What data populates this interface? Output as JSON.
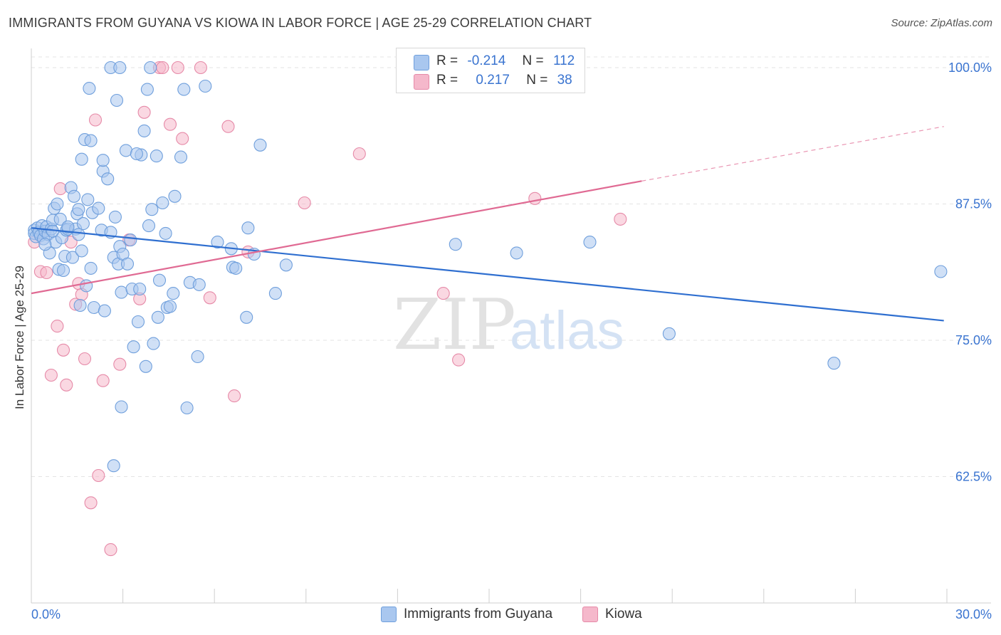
{
  "title": "IMMIGRANTS FROM GUYANA VS KIOWA IN LABOR FORCE | AGE 25-29 CORRELATION CHART",
  "source": "Source: ZipAtlas.com",
  "watermark": {
    "zip": "ZIP",
    "atlas": "atlas"
  },
  "legend": {
    "rows": [
      {
        "r_label": "R =",
        "r_value": "-0.214",
        "n_label": "N =",
        "n_value": "112",
        "color": "#a9c7ef"
      },
      {
        "r_label": "R =",
        "r_value": "0.217",
        "n_label": "N =",
        "n_value": "38",
        "color": "#f5b8cb"
      }
    ]
  },
  "bottom_legend": [
    {
      "label": "Immigrants from Guyana",
      "color": "#a9c7ef"
    },
    {
      "label": "Kiowa",
      "color": "#f5b8cb"
    }
  ],
  "chart_data": {
    "type": "scatter",
    "title": "IMMIGRANTS FROM GUYANA VS KIOWA IN LABOR FORCE | AGE 25-29 CORRELATION CHART",
    "xlabel": "",
    "ylabel": "In Labor Force | Age 25-29",
    "xlim": [
      0,
      30
    ],
    "ylim": [
      52,
      102
    ],
    "x_tick_labels": [
      "0.0%",
      "30.0%"
    ],
    "y_ticks": [
      62.5,
      75.0,
      87.5,
      100.0
    ],
    "y_tick_labels": [
      "62.5%",
      "75.0%",
      "87.5%",
      "100.0%"
    ],
    "grid": true,
    "colors": {
      "blue_point": "#a9c7ef",
      "blue_edge": "#6f9fdc",
      "blue_line": "#2f6fd0",
      "pink_point": "#f5b8cb",
      "pink_edge": "#e68aa8",
      "pink_line": "#e06a93",
      "tick_label": "#3a74d0"
    },
    "series": [
      {
        "name": "Immigrants from Guyana",
        "trend": {
          "x": [
            0.0,
            29.9
          ],
          "y": [
            85.3,
            76.8
          ]
        },
        "points": [
          [
            0.1,
            85.1
          ],
          [
            0.1,
            84.8
          ],
          [
            0.15,
            84.5
          ],
          [
            0.2,
            85.3
          ],
          [
            0.25,
            84.9
          ],
          [
            0.3,
            84.6
          ],
          [
            0.35,
            85.5
          ],
          [
            0.4,
            84.3
          ],
          [
            0.45,
            85.0
          ],
          [
            0.5,
            85.4
          ],
          [
            0.55,
            84.7
          ],
          [
            0.6,
            83.0
          ],
          [
            0.65,
            85.2
          ],
          [
            0.7,
            86.0
          ],
          [
            0.75,
            87.1
          ],
          [
            0.8,
            84.0
          ],
          [
            0.85,
            87.5
          ],
          [
            0.9,
            81.5
          ],
          [
            0.95,
            86.1
          ],
          [
            1.0,
            84.4
          ],
          [
            1.05,
            81.4
          ],
          [
            1.1,
            82.7
          ],
          [
            1.15,
            85.1
          ],
          [
            1.2,
            85.2
          ],
          [
            1.3,
            89.0
          ],
          [
            1.35,
            82.6
          ],
          [
            1.4,
            88.2
          ],
          [
            1.45,
            85.2
          ],
          [
            1.5,
            86.6
          ],
          [
            1.55,
            87.0
          ],
          [
            1.6,
            78.2
          ],
          [
            1.65,
            83.2
          ],
          [
            1.7,
            85.7
          ],
          [
            1.75,
            93.4
          ],
          [
            1.8,
            80.0
          ],
          [
            1.85,
            87.9
          ],
          [
            1.9,
            98.1
          ],
          [
            1.95,
            81.6
          ],
          [
            2.0,
            86.7
          ],
          [
            2.05,
            78.0
          ],
          [
            1.65,
            91.6
          ],
          [
            2.2,
            87.1
          ],
          [
            2.3,
            85.1
          ],
          [
            2.35,
            90.5
          ],
          [
            2.4,
            77.7
          ],
          [
            2.5,
            89.8
          ],
          [
            2.6,
            100.0
          ],
          [
            2.7,
            82.6
          ],
          [
            2.75,
            86.3
          ],
          [
            2.8,
            97.0
          ],
          [
            2.85,
            82.0
          ],
          [
            2.9,
            83.6
          ],
          [
            2.95,
            79.4
          ],
          [
            3.0,
            82.9
          ],
          [
            3.1,
            92.4
          ],
          [
            3.15,
            82.0
          ],
          [
            3.25,
            84.2
          ],
          [
            3.3,
            79.7
          ],
          [
            3.35,
            74.4
          ],
          [
            3.5,
            76.7
          ],
          [
            3.55,
            79.7
          ],
          [
            3.6,
            92.0
          ],
          [
            3.7,
            94.2
          ],
          [
            3.75,
            72.6
          ],
          [
            3.8,
            98.0
          ],
          [
            3.85,
            85.5
          ],
          [
            3.95,
            87.0
          ],
          [
            4.0,
            74.7
          ],
          [
            4.1,
            91.9
          ],
          [
            4.15,
            77.1
          ],
          [
            4.2,
            80.5
          ],
          [
            4.3,
            87.6
          ],
          [
            4.4,
            84.8
          ],
          [
            4.45,
            78.0
          ],
          [
            4.55,
            78.1
          ],
          [
            4.65,
            79.3
          ],
          [
            4.7,
            88.2
          ],
          [
            4.9,
            91.8
          ],
          [
            5.0,
            98.0
          ],
          [
            5.1,
            68.8
          ],
          [
            5.2,
            80.3
          ],
          [
            5.45,
            73.5
          ],
          [
            5.5,
            80.1
          ],
          [
            6.55,
            83.4
          ],
          [
            6.6,
            81.7
          ],
          [
            7.05,
            77.1
          ],
          [
            7.1,
            85.3
          ],
          [
            7.5,
            92.9
          ],
          [
            8.0,
            79.3
          ],
          [
            8.35,
            81.9
          ],
          [
            3.9,
            100.0
          ],
          [
            2.9,
            100.0
          ],
          [
            2.95,
            68.9
          ],
          [
            2.7,
            63.5
          ],
          [
            6.1,
            84.0
          ],
          [
            7.3,
            82.9
          ],
          [
            5.7,
            98.3
          ],
          [
            2.35,
            91.5
          ],
          [
            3.45,
            92.1
          ],
          [
            1.95,
            93.3
          ],
          [
            13.9,
            83.8
          ],
          [
            15.9,
            83.0
          ],
          [
            18.3,
            84.0
          ],
          [
            20.9,
            75.6
          ],
          [
            26.3,
            72.9
          ],
          [
            29.8,
            81.3
          ],
          [
            1.55,
            84.7
          ],
          [
            0.45,
            83.8
          ],
          [
            2.6,
            84.9
          ],
          [
            1.2,
            85.4
          ],
          [
            0.7,
            85.0
          ],
          [
            6.7,
            81.6
          ]
        ]
      },
      {
        "name": "Kiowa",
        "trend": {
          "x": [
            0.0,
            20.0
          ],
          "y": [
            79.3,
            89.6
          ]
        },
        "trend_dashed": {
          "x": [
            20.0,
            29.9
          ],
          "y": [
            89.6,
            94.6
          ]
        },
        "points": [
          [
            0.1,
            84.0
          ],
          [
            0.3,
            81.3
          ],
          [
            0.5,
            81.2
          ],
          [
            0.65,
            71.8
          ],
          [
            0.85,
            76.3
          ],
          [
            0.95,
            88.9
          ],
          [
            1.05,
            74.1
          ],
          [
            1.15,
            70.9
          ],
          [
            1.3,
            84.0
          ],
          [
            1.45,
            78.3
          ],
          [
            1.55,
            80.2
          ],
          [
            1.65,
            79.2
          ],
          [
            1.75,
            73.3
          ],
          [
            1.95,
            60.1
          ],
          [
            2.1,
            95.2
          ],
          [
            2.2,
            62.6
          ],
          [
            2.35,
            71.3
          ],
          [
            2.6,
            55.8
          ],
          [
            2.9,
            72.8
          ],
          [
            3.2,
            84.2
          ],
          [
            3.55,
            78.8
          ],
          [
            3.7,
            95.9
          ],
          [
            4.2,
            100.0
          ],
          [
            4.55,
            94.8
          ],
          [
            4.8,
            100.0
          ],
          [
            4.95,
            93.5
          ],
          [
            5.55,
            100.0
          ],
          [
            5.85,
            78.9
          ],
          [
            6.45,
            94.6
          ],
          [
            6.65,
            69.9
          ],
          [
            7.1,
            83.1
          ],
          [
            8.95,
            87.6
          ],
          [
            10.75,
            92.1
          ],
          [
            13.5,
            79.3
          ],
          [
            14.0,
            73.2
          ],
          [
            16.5,
            88.0
          ],
          [
            19.3,
            86.1
          ],
          [
            4.3,
            100.0
          ]
        ]
      }
    ]
  }
}
